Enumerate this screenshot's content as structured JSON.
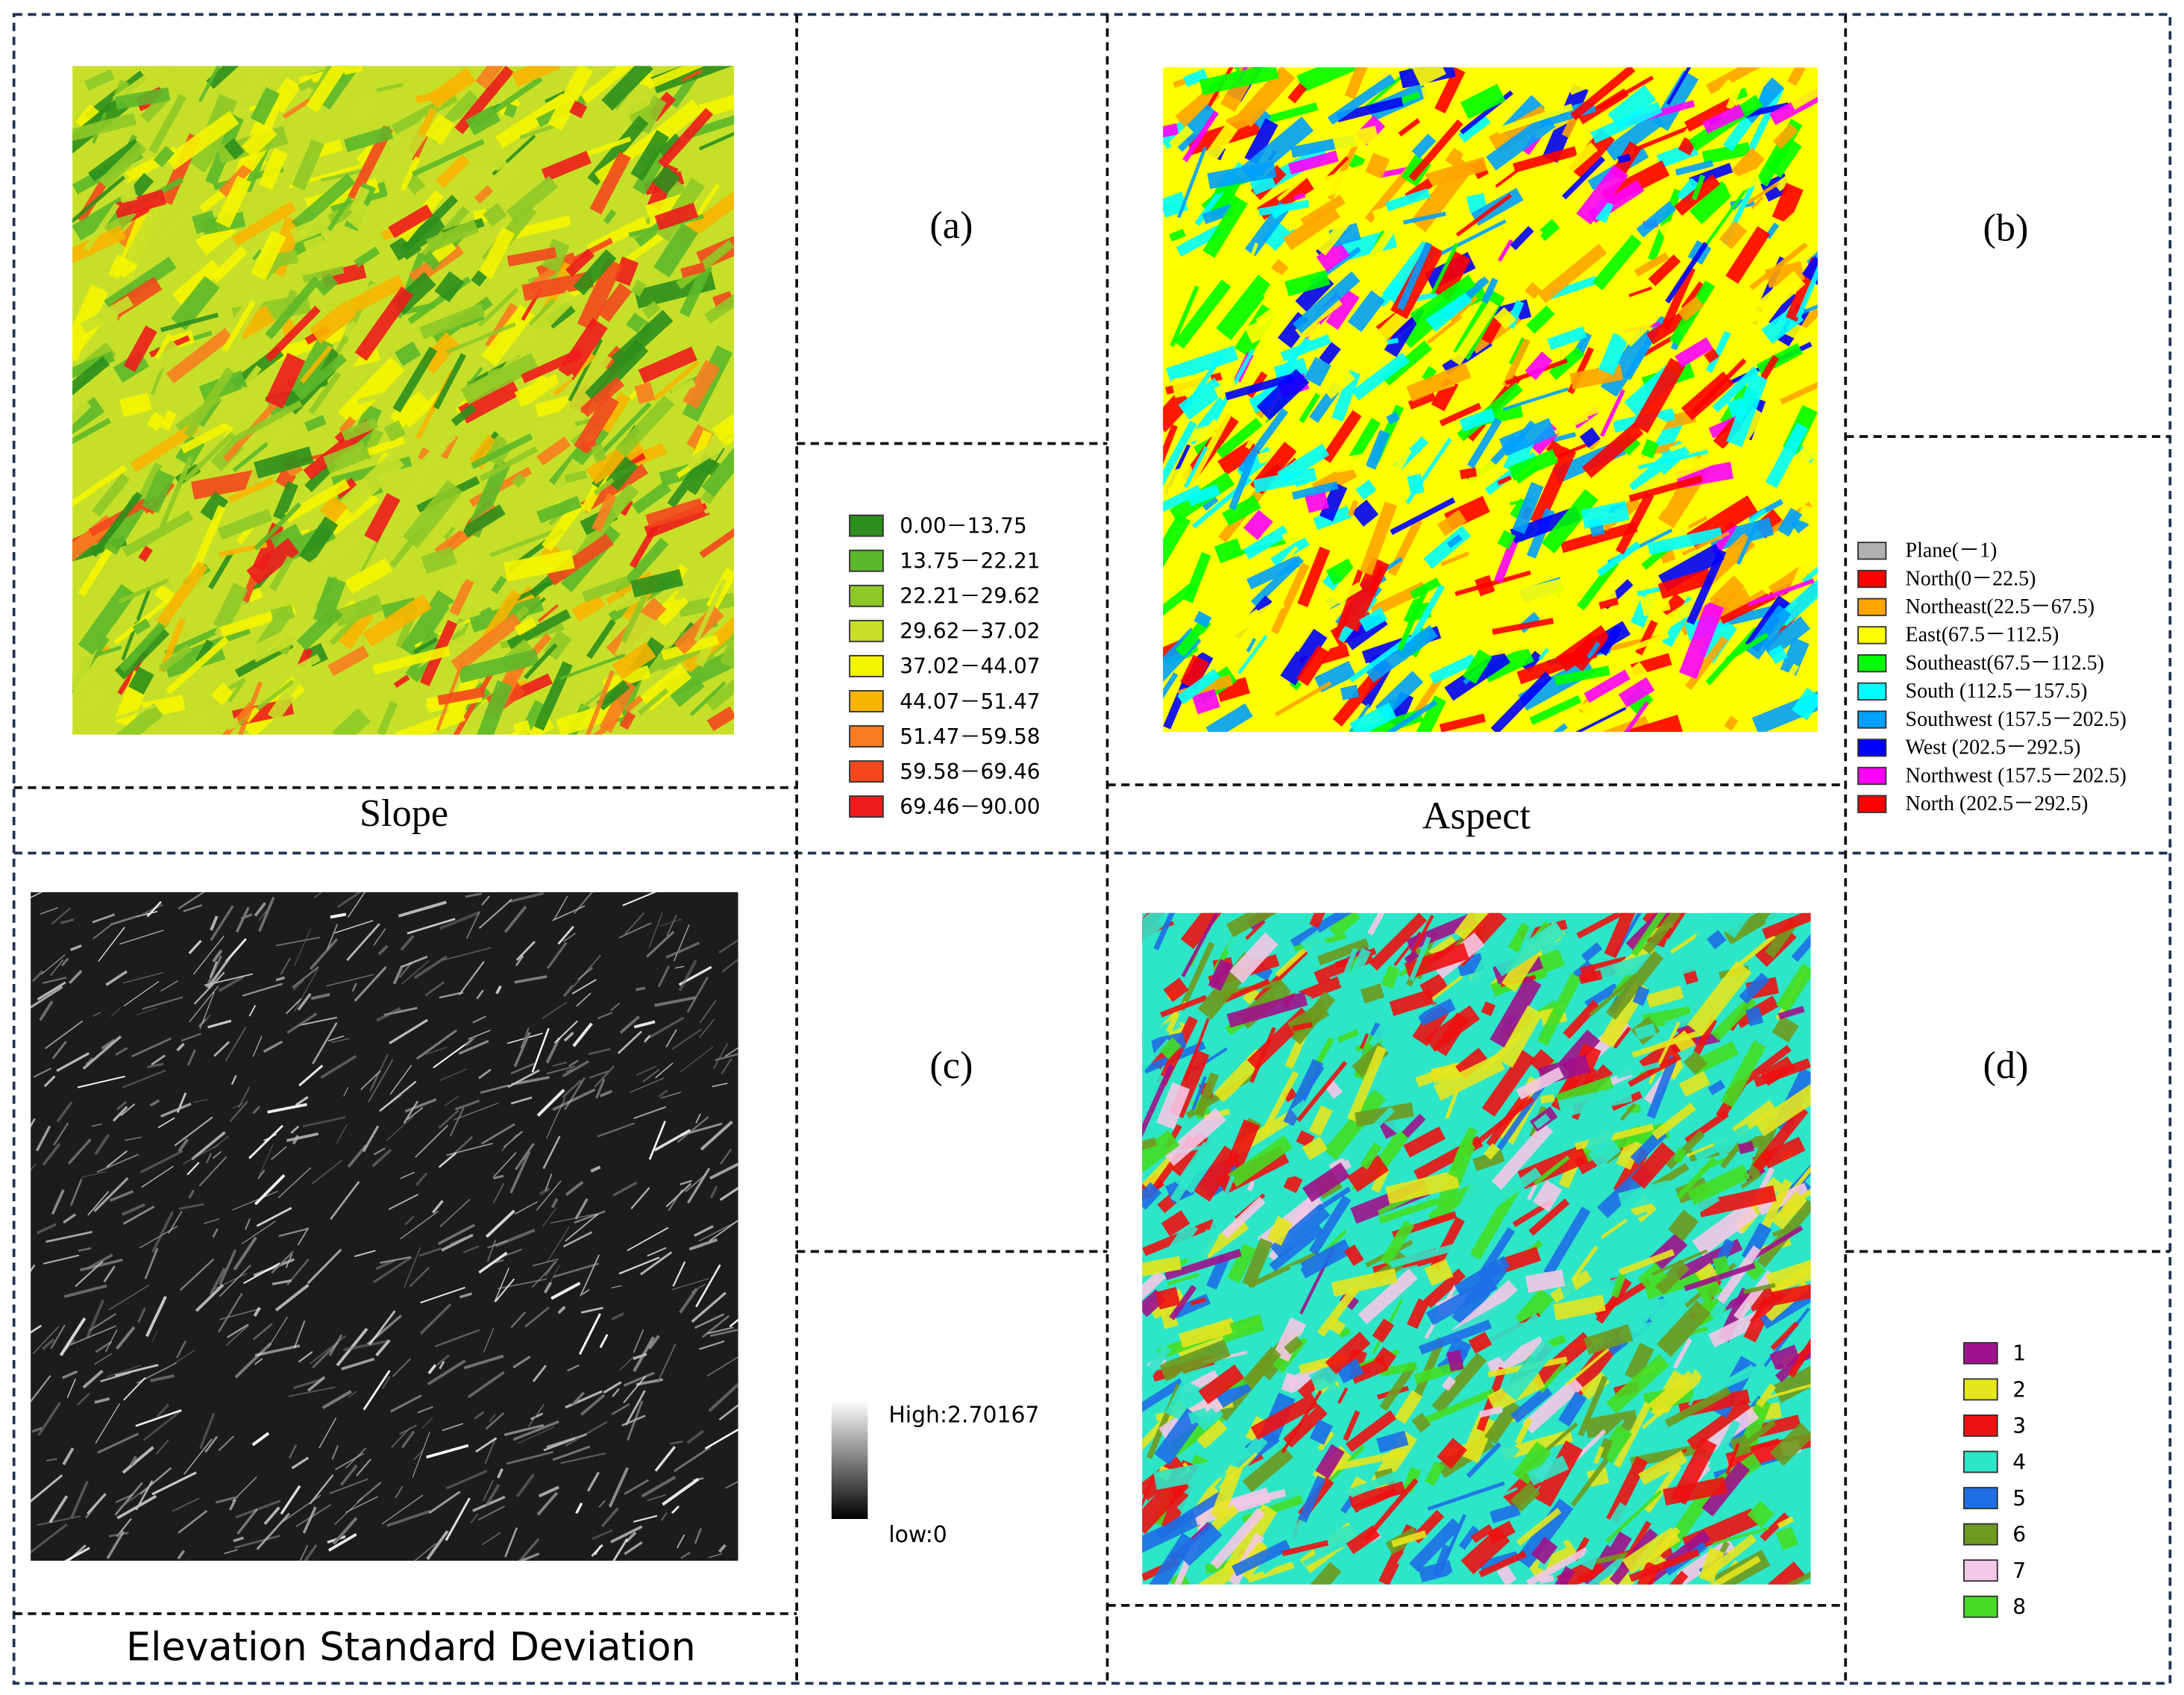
{
  "panels": [
    {
      "title": "Slope",
      "tag": "(a)",
      "legend": [
        {
          "label": "0.00－13.75",
          "color": "#2b8f1c"
        },
        {
          "label": "13.75－22.21",
          "color": "#5cb82a"
        },
        {
          "label": "22.21－29.62",
          "color": "#8ec927"
        },
        {
          "label": "29.62－37.02",
          "color": "#c6e02a"
        },
        {
          "label": "37.02－44.07",
          "color": "#f5f500"
        },
        {
          "label": "44.07－51.47",
          "color": "#f7b500"
        },
        {
          "label": "51.47－59.58",
          "color": "#f77d1f"
        },
        {
          "label": "59.58－69.46",
          "color": "#f2481c"
        },
        {
          "label": "69.46－90.00",
          "color": "#ee1c1c"
        }
      ]
    },
    {
      "title": "Aspect",
      "tag": "(b)",
      "legend": [
        {
          "label": "Plane(－1)",
          "color": "#b0b0b0"
        },
        {
          "label": "North(0－22.5)",
          "color": "#ff0000"
        },
        {
          "label": "Northeast(22.5－67.5)",
          "color": "#ffa500"
        },
        {
          "label": "East(67.5－112.5)",
          "color": "#ffff00"
        },
        {
          "label": "Southeast(67.5－112.5)",
          "color": "#00ff00"
        },
        {
          "label": "South (112.5－157.5)",
          "color": "#00ffff"
        },
        {
          "label": "Southwest (157.5－202.5)",
          "color": "#00a0ff"
        },
        {
          "label": "West (202.5－292.5)",
          "color": "#0000ff"
        },
        {
          "label": "Northwest (157.5－202.5)",
          "color": "#ff00ff"
        },
        {
          "label": "North (202.5－292.5)",
          "color": "#ff0000"
        }
      ]
    },
    {
      "title": "Elevation Standard Deviation",
      "tag": "(c)",
      "gradient": {
        "high": "High:2.70167",
        "low": "low:0",
        "colors": [
          "#ffffff",
          "#000000"
        ]
      }
    },
    {
      "tag": "(d)",
      "legend": [
        {
          "label": "1",
          "color": "#a0118c"
        },
        {
          "label": "2",
          "color": "#e6e61e"
        },
        {
          "label": "3",
          "color": "#ee1111"
        },
        {
          "label": "4",
          "color": "#2de6c8"
        },
        {
          "label": "5",
          "color": "#1e6ee6"
        },
        {
          "label": "6",
          "color": "#6e9a1e"
        },
        {
          "label": "7",
          "color": "#f5c8e6"
        },
        {
          "label": "8",
          "color": "#44dd22"
        }
      ]
    }
  ]
}
